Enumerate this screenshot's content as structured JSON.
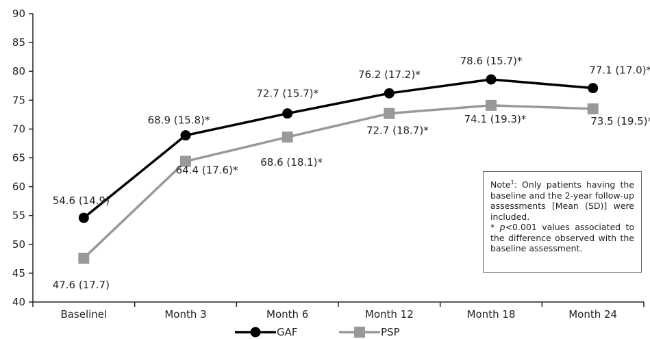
{
  "chart_data": {
    "type": "line",
    "categories": [
      "Baselinel",
      "Month 3",
      "Month 6",
      "Month 12",
      "Month 18",
      "Month 24"
    ],
    "ylim": [
      40,
      90
    ],
    "yticks": [
      40,
      45,
      50,
      55,
      60,
      65,
      70,
      75,
      80,
      85,
      90
    ],
    "grid": false,
    "legend_position": "bottom",
    "series": [
      {
        "name": "GAF",
        "values": [
          54.6,
          68.9,
          72.7,
          76.2,
          78.6,
          77.1
        ],
        "labels": [
          "54.6 (14.9)",
          "68.9 (15.8)*",
          "72.7 (15.7)*",
          "76.2 (17.2)*",
          "78.6 (15.7)*",
          "77.1 (17.0)*"
        ],
        "color": "#000000",
        "marker": "circle"
      },
      {
        "name": "PSP",
        "values": [
          47.6,
          64.4,
          68.6,
          72.7,
          74.1,
          73.5
        ],
        "labels": [
          "47.6 (17.7)",
          "64.4 (17.6)*",
          "68.6 (18.1)*",
          "72.7 (18.7)*",
          "74.1 (19.3)*",
          "73.5 (19.5)*"
        ],
        "color": "#999999",
        "marker": "square"
      }
    ]
  },
  "note": {
    "prefix": "Note",
    "sup": "1",
    "text1": ": Only patients having the baseline and the 2-year follow-up assessments [Mean (SD)] were included.",
    "star": "* ",
    "p": "p",
    "text2": "<0.001 values associated to the difference observed with the baseline assessment."
  }
}
